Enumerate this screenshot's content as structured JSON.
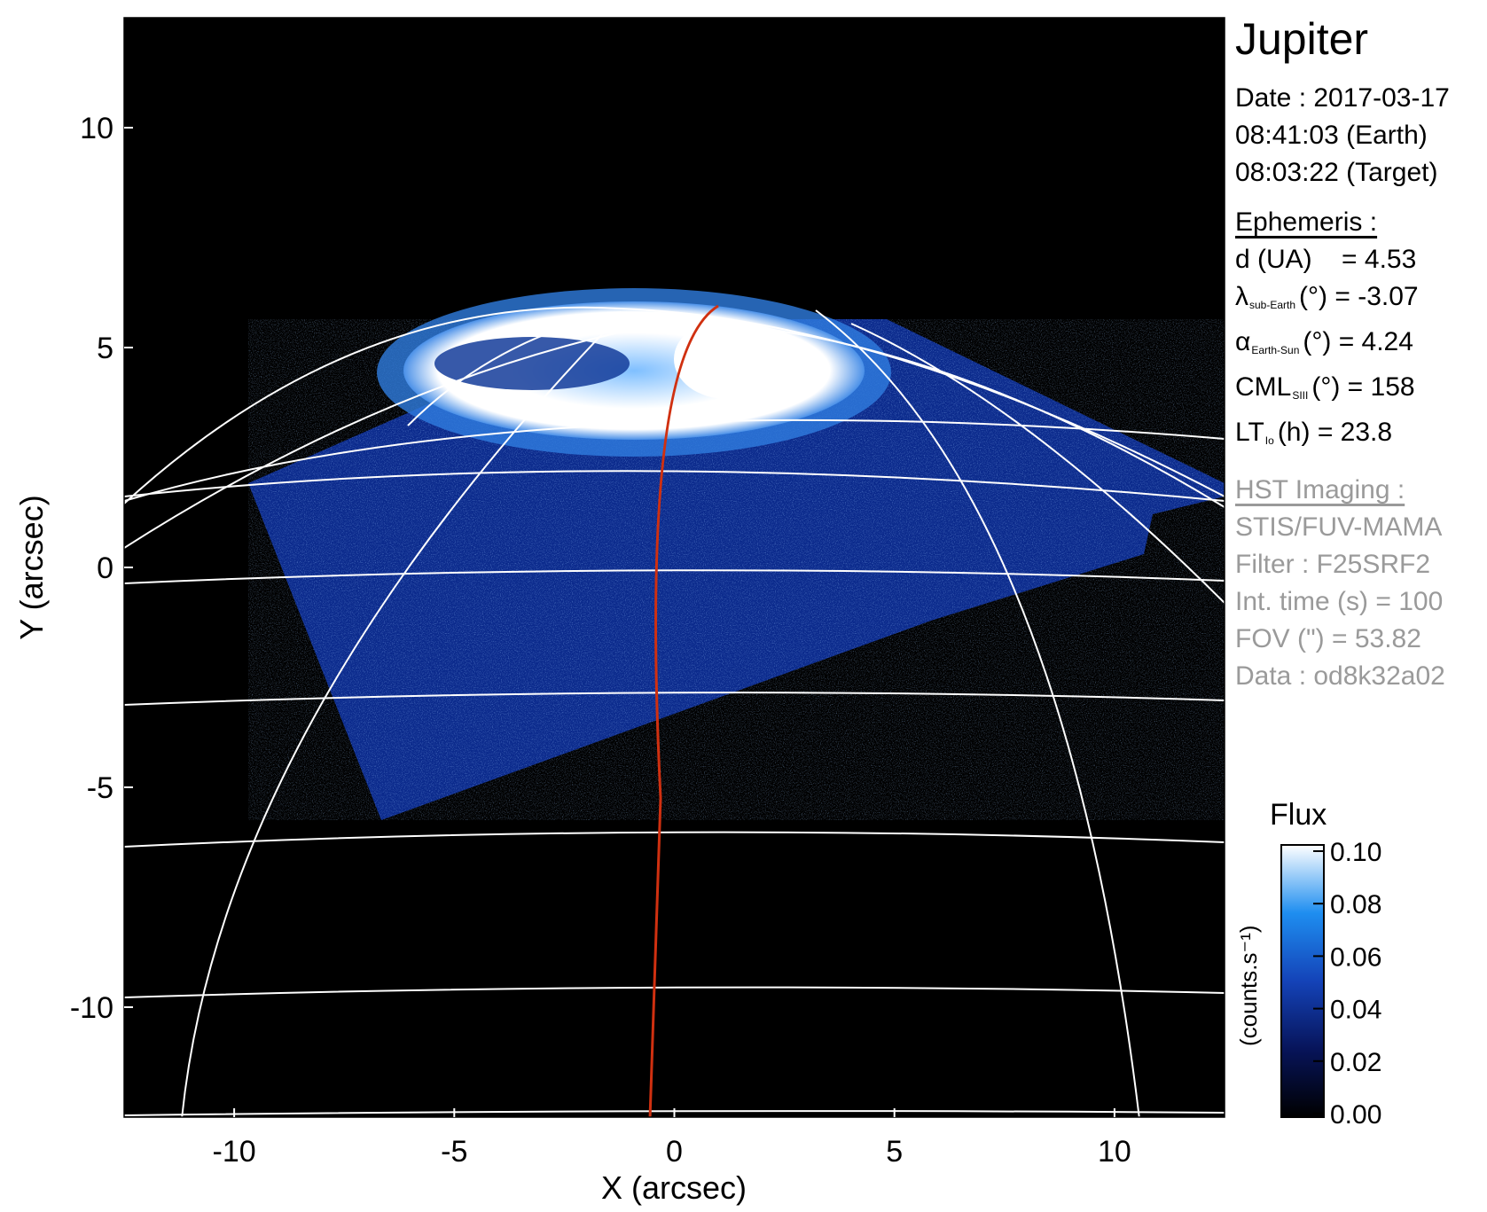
{
  "panel": {
    "target": "Jupiter",
    "date_line": "Date : 2017-03-17",
    "earth_time_line": "08:41:03 (Earth)",
    "target_time_line": "08:03:22 (Target)",
    "ephemeris_header": "Ephemeris :",
    "ephemeris": {
      "d_label": "d (UA)",
      "d_value": "= 4.53",
      "lambda_symbol": "λ",
      "lambda_sub": "sub-Earth",
      "lambda_rest": "(°) = -3.07",
      "alpha_symbol": "α",
      "alpha_sub": "Earth-Sun",
      "alpha_rest": "(°) = 4.24",
      "cml_label": "CML",
      "cml_sub": "SIII",
      "cml_rest": "(°) = 158",
      "lt_label": "LT",
      "lt_sub": "Io",
      "lt_rest": "(h) = 23.8"
    },
    "imaging_header": "HST Imaging :",
    "imaging": [
      "STIS/FUV-MAMA",
      "Filter : F25SRF2",
      "Int. time (s) = 100",
      "FOV (\") = 53.82",
      "Data : od8k32a02"
    ]
  },
  "axes": {
    "xlabel": "X (arcsec)",
    "ylabel": "Y (arcsec)",
    "xticks": [
      -10,
      -5,
      0,
      5,
      10
    ],
    "yticks": [
      10,
      5,
      0,
      -5,
      -10
    ],
    "xlim": [
      -12.5,
      12.5
    ],
    "ylim": [
      -12.5,
      12.5
    ]
  },
  "colorbar": {
    "title": "Flux",
    "label": "(counts.s⁻¹)",
    "ticks": [
      "0.10",
      "0.08",
      "0.06",
      "0.04",
      "0.02",
      "0.00"
    ],
    "range": [
      0.0,
      0.1
    ]
  },
  "colors": {
    "background": "#000000",
    "grid": "#ffffff",
    "footprint_line": "#d03010",
    "data_low": "#0a1a5a",
    "data_mid": "#1f6fd8",
    "data_high": "#ffffff",
    "text_gray": "#9a9a9a"
  }
}
